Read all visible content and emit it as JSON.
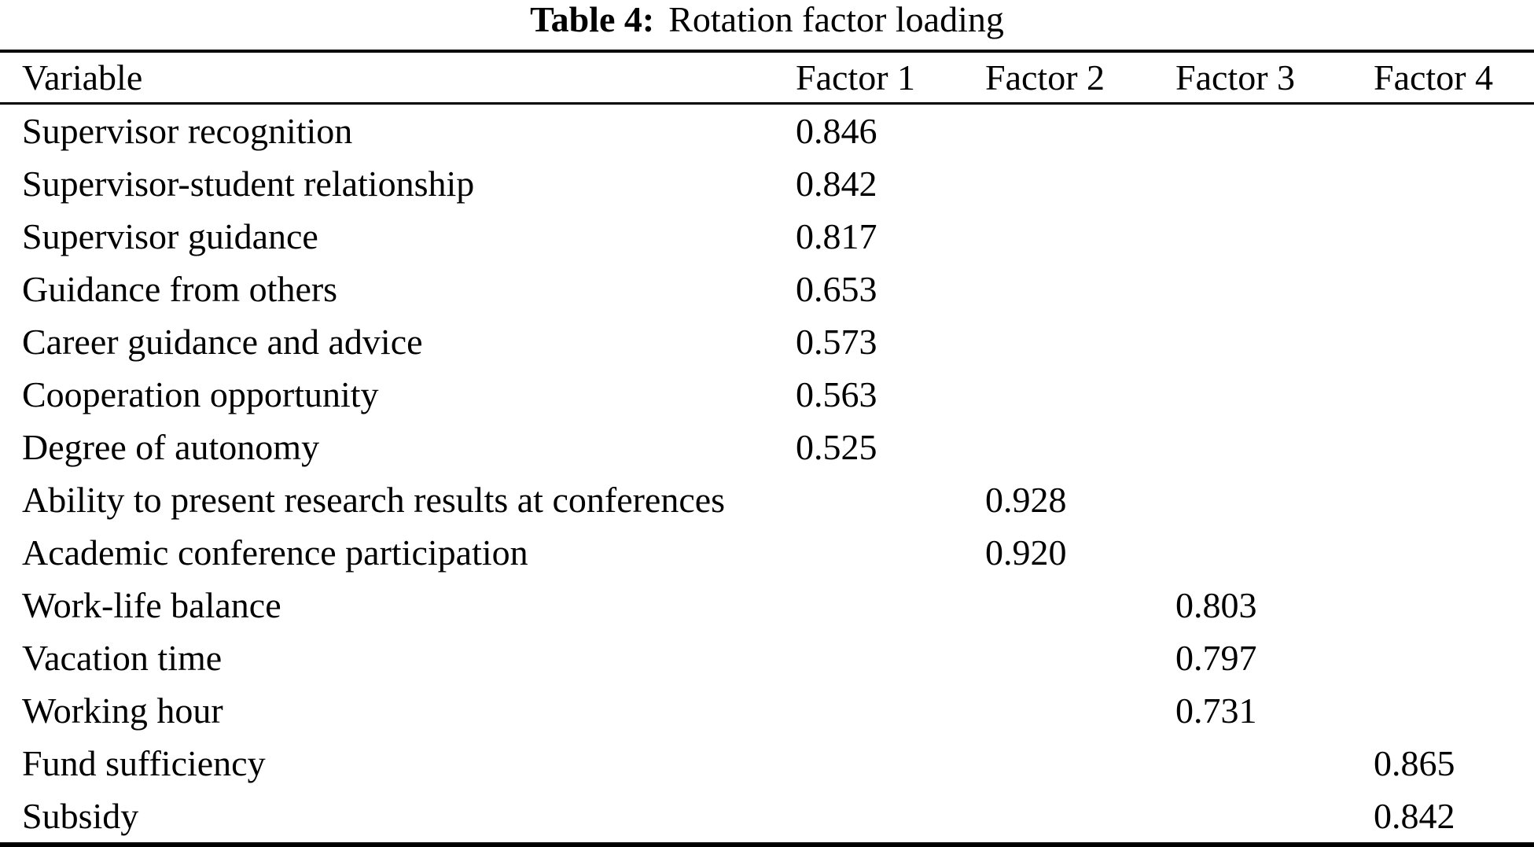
{
  "colors": {
    "background": "#ffffff",
    "text": "#000000",
    "rule": "#000000"
  },
  "caption": {
    "label": "Table 4:",
    "text": "Rotation factor loading"
  },
  "table": {
    "columns": [
      "Variable",
      "Factor 1",
      "Factor 2",
      "Factor 3",
      "Factor 4"
    ],
    "rows": [
      {
        "cells": [
          "Supervisor recognition",
          "0.846",
          "",
          "",
          ""
        ]
      },
      {
        "cells": [
          "Supervisor-student relationship",
          "0.842",
          "",
          "",
          ""
        ]
      },
      {
        "cells": [
          "Supervisor guidance",
          "0.817",
          "",
          "",
          ""
        ]
      },
      {
        "cells": [
          "Guidance from others",
          "0.653",
          "",
          "",
          ""
        ]
      },
      {
        "cells": [
          "Career guidance and advice",
          "0.573",
          "",
          "",
          ""
        ]
      },
      {
        "cells": [
          "Cooperation opportunity",
          "0.563",
          "",
          "",
          ""
        ]
      },
      {
        "cells": [
          "Degree of autonomy",
          "0.525",
          "",
          "",
          ""
        ]
      },
      {
        "cells": [
          "Ability to present research results at conferences",
          "",
          "0.928",
          "",
          ""
        ]
      },
      {
        "cells": [
          "Academic conference participation",
          "",
          "0.920",
          "",
          ""
        ]
      },
      {
        "cells": [
          "Work-life balance",
          "",
          "",
          "0.803",
          ""
        ]
      },
      {
        "cells": [
          "Vacation time",
          "",
          "",
          "0.797",
          ""
        ]
      },
      {
        "cells": [
          "Working hour",
          "",
          "",
          "0.731",
          ""
        ]
      },
      {
        "cells": [
          "Fund sufficiency",
          "",
          "",
          "",
          "0.865"
        ]
      },
      {
        "cells": [
          "Subsidy",
          "",
          "",
          "",
          "0.842"
        ]
      }
    ]
  },
  "chart_data": {
    "type": "table",
    "title": "Table 4: Rotation factor loading",
    "columns": [
      "Variable",
      "Factor 1",
      "Factor 2",
      "Factor 3",
      "Factor 4"
    ],
    "rows": [
      [
        "Supervisor recognition",
        0.846,
        null,
        null,
        null
      ],
      [
        "Supervisor-student relationship",
        0.842,
        null,
        null,
        null
      ],
      [
        "Supervisor guidance",
        0.817,
        null,
        null,
        null
      ],
      [
        "Guidance from others",
        0.653,
        null,
        null,
        null
      ],
      [
        "Career guidance and advice",
        0.573,
        null,
        null,
        null
      ],
      [
        "Cooperation opportunity",
        0.563,
        null,
        null,
        null
      ],
      [
        "Degree of autonomy",
        0.525,
        null,
        null,
        null
      ],
      [
        "Ability to present research results at conferences",
        null,
        0.928,
        null,
        null
      ],
      [
        "Academic conference participation",
        null,
        0.92,
        null,
        null
      ],
      [
        "Work-life balance",
        null,
        null,
        0.803,
        null
      ],
      [
        "Vacation time",
        null,
        null,
        0.797,
        null
      ],
      [
        "Working hour",
        null,
        null,
        0.731,
        null
      ],
      [
        "Fund sufficiency",
        null,
        null,
        null,
        0.865
      ],
      [
        "Subsidy",
        null,
        null,
        null,
        0.842
      ]
    ]
  }
}
